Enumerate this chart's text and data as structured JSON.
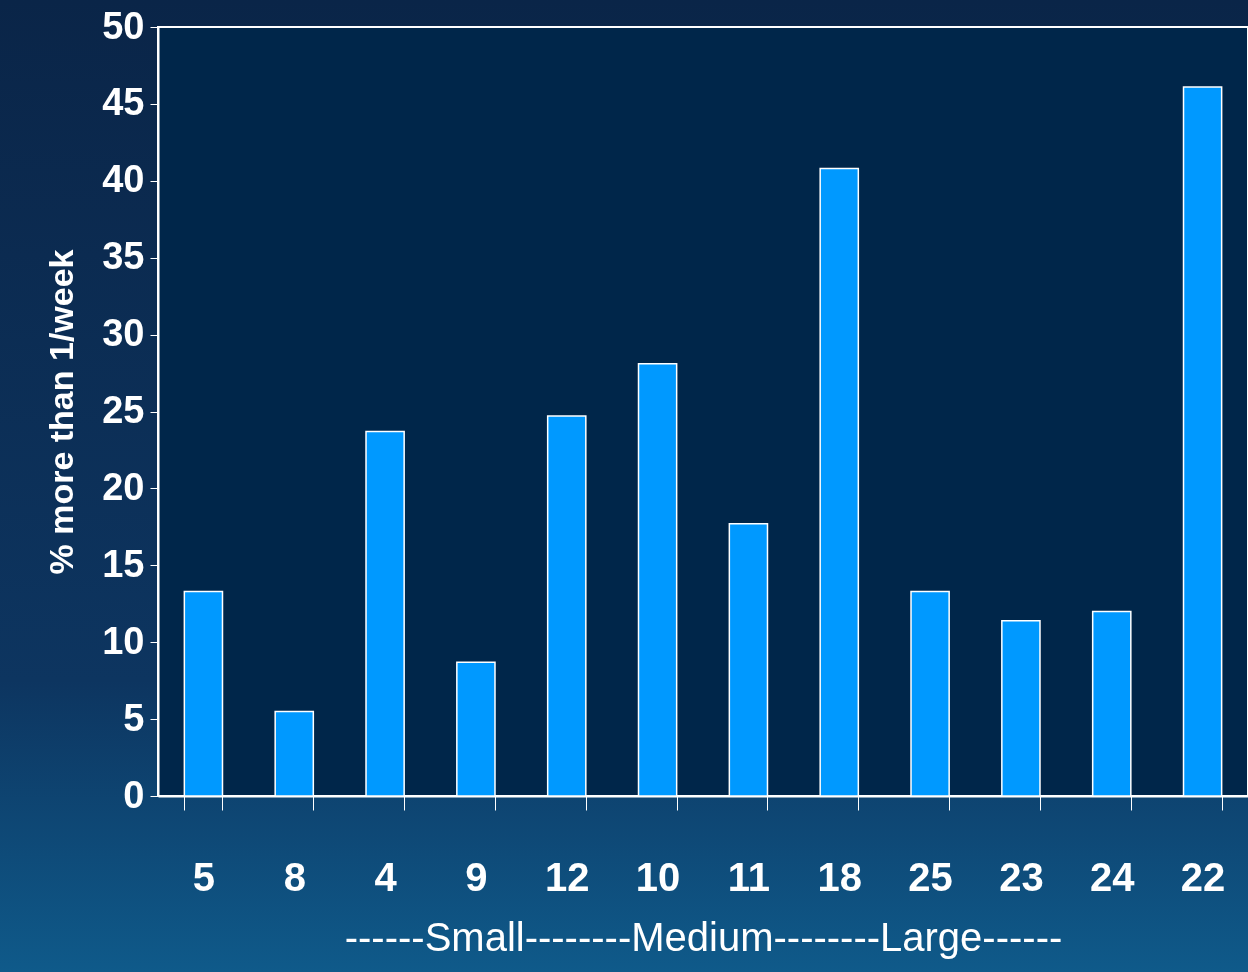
{
  "chart_data": {
    "type": "bar",
    "xlabel": "------Small--------Medium--------Large------",
    "ylabel": "% more than 1/week",
    "categories": [
      "5",
      "8",
      "4",
      "9",
      "12",
      "10",
      "11",
      "18",
      "25",
      "23",
      "24",
      "22"
    ],
    "values": [
      13.3,
      5.5,
      23.7,
      8.7,
      24.7,
      28.1,
      17.7,
      40.8,
      13.3,
      11.4,
      12.0,
      46.1
    ],
    "color": "#0099ff",
    "ylim": [
      0,
      50
    ],
    "yticks": [
      0,
      5,
      10,
      15,
      20,
      25,
      30,
      35,
      40,
      45,
      50
    ],
    "grid": false
  }
}
